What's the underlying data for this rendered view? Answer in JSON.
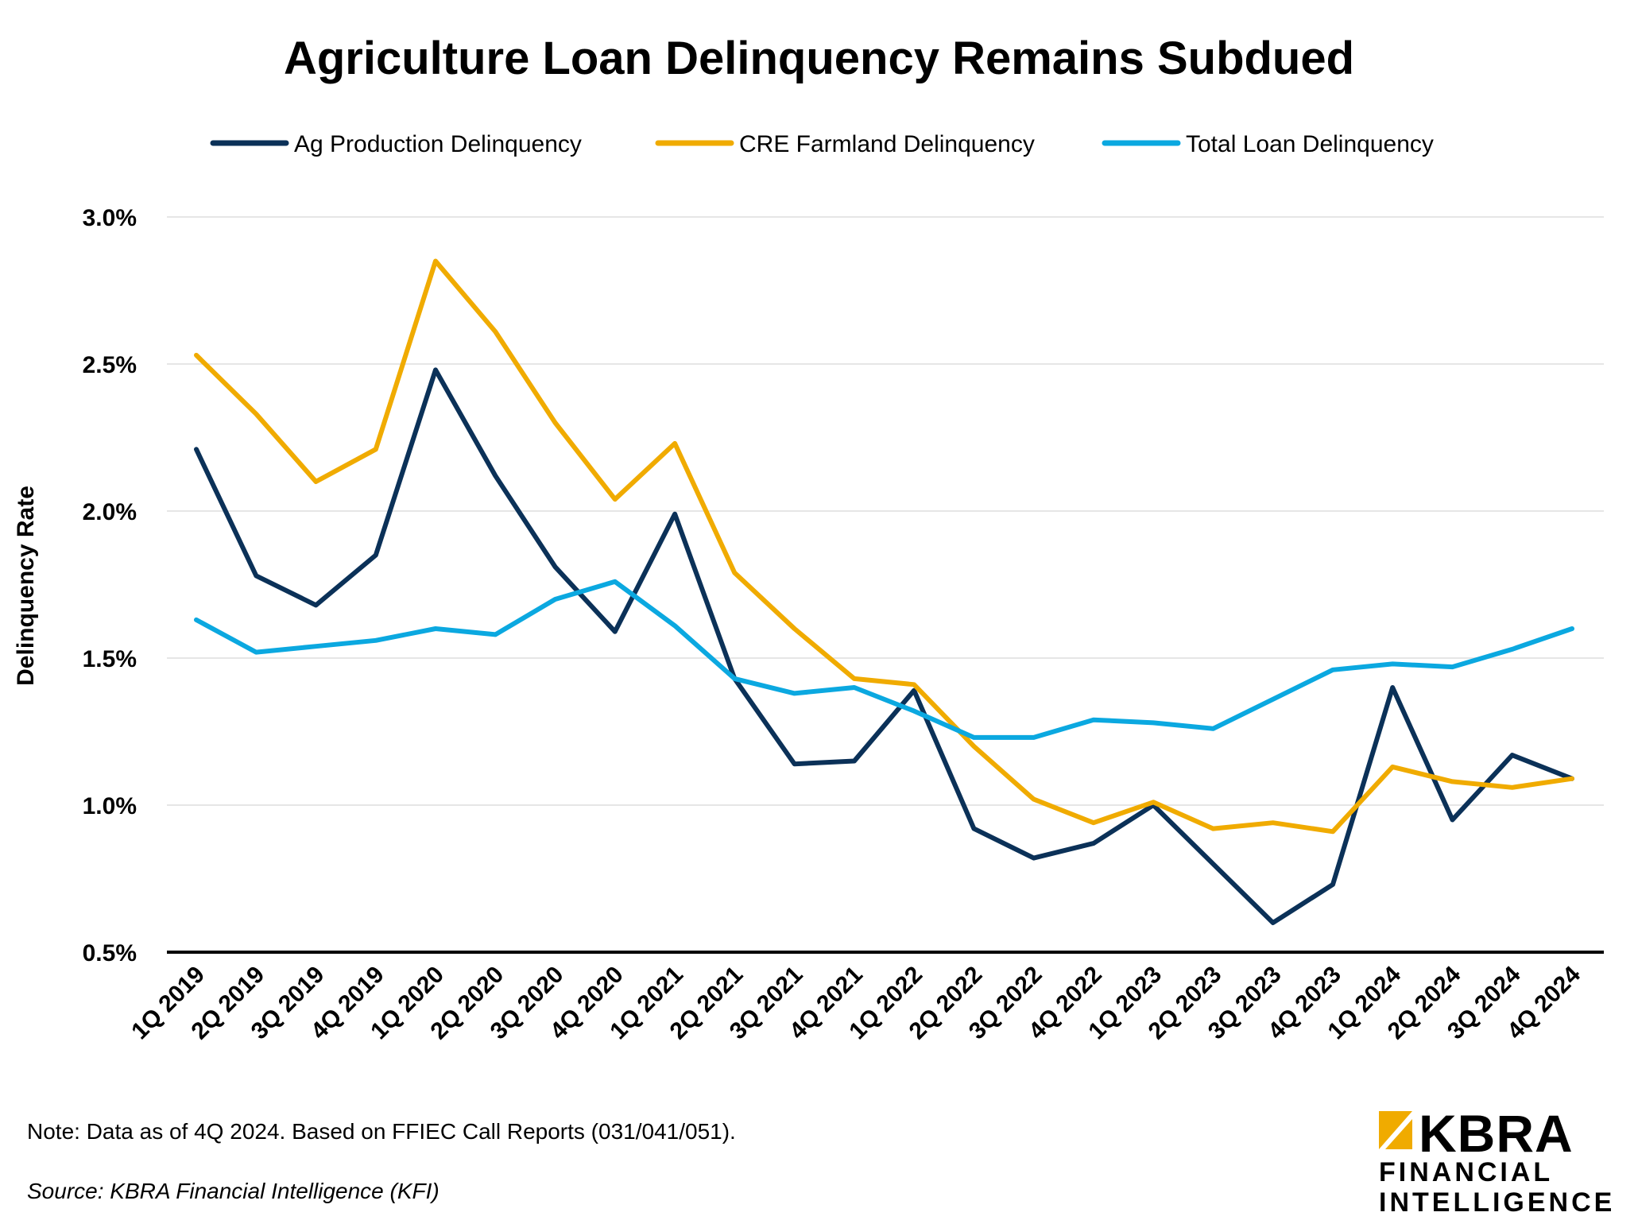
{
  "chart_data": {
    "type": "line",
    "title": "Agriculture Loan Delinquency Remains Subdued",
    "xlabel": "",
    "ylabel": "Delinquency Rate",
    "ylim": [
      0.5,
      3.0
    ],
    "yticks": [
      0.5,
      1.0,
      1.5,
      2.0,
      2.5,
      3.0
    ],
    "ytick_labels": [
      "0.5%",
      "1.0%",
      "1.5%",
      "2.0%",
      "2.5%",
      "3.0%"
    ],
    "grid": "horizontal",
    "legend_position": "top",
    "categories": [
      "1Q 2019",
      "2Q 2019",
      "3Q 2019",
      "4Q 2019",
      "1Q 2020",
      "2Q 2020",
      "3Q 2020",
      "4Q 2020",
      "1Q 2021",
      "2Q 2021",
      "3Q 2021",
      "4Q 2021",
      "1Q 2022",
      "2Q 2022",
      "3Q 2022",
      "4Q 2022",
      "1Q 2023",
      "2Q 2023",
      "3Q 2023",
      "4Q 2023",
      "1Q 2024",
      "2Q 2024",
      "3Q 2024",
      "4Q 2024"
    ],
    "series": [
      {
        "name": "Ag Production Delinquency",
        "color": "#0B3158",
        "values": [
          2.21,
          1.78,
          1.68,
          1.85,
          2.48,
          2.12,
          1.81,
          1.59,
          1.99,
          1.43,
          1.14,
          1.15,
          1.39,
          0.92,
          0.82,
          0.87,
          1.0,
          0.8,
          0.6,
          0.73,
          1.4,
          0.95,
          1.17,
          1.09
        ]
      },
      {
        "name": "CRE Farmland Delinquency",
        "color": "#F0AB00",
        "values": [
          2.53,
          2.33,
          2.1,
          2.21,
          2.85,
          2.61,
          2.3,
          2.04,
          2.23,
          1.79,
          1.6,
          1.43,
          1.41,
          1.2,
          1.02,
          0.94,
          1.01,
          0.92,
          0.94,
          0.91,
          1.13,
          1.08,
          1.06,
          1.09
        ]
      },
      {
        "name": "Total Loan Delinquency",
        "color": "#0BA8E0",
        "values": [
          1.63,
          1.52,
          1.54,
          1.56,
          1.6,
          1.58,
          1.7,
          1.76,
          1.61,
          1.43,
          1.38,
          1.4,
          1.32,
          1.23,
          1.23,
          1.29,
          1.28,
          1.26,
          1.36,
          1.46,
          1.48,
          1.47,
          1.53,
          1.6
        ]
      }
    ]
  },
  "footer": {
    "note": "Note: Data as of 4Q 2024. Based on FFIEC Call Reports (031/041/051).",
    "source": "Source: KBRA Financial Intelligence (KFI)"
  },
  "logo": {
    "name": "KBRA",
    "line1": "FINANCIAL",
    "line2": "INTELLIGENCE",
    "color": "#F0AB00"
  }
}
